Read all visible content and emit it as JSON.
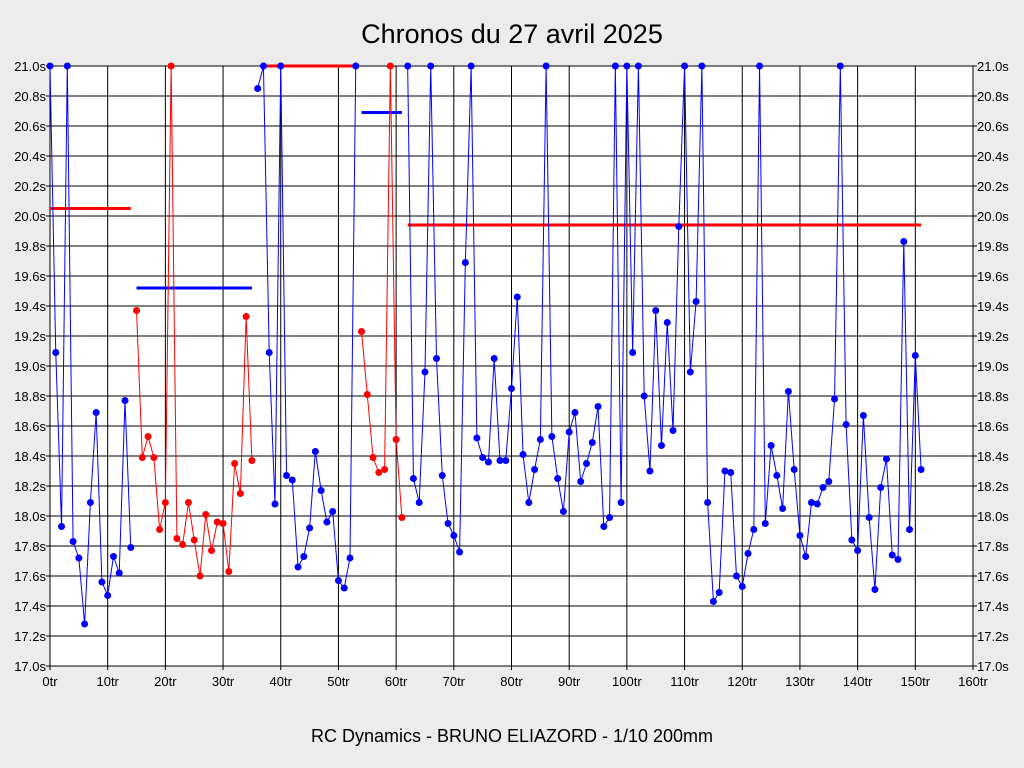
{
  "chart_data": {
    "type": "line",
    "title": "Chronos du 27 avril 2025",
    "footer": "RC Dynamics - BRUNO ELIAZORD - 1/10 200mm",
    "xlabel": "",
    "ylabel": "",
    "xlim": [
      0,
      160
    ],
    "ylim": [
      17.0,
      21.0
    ],
    "x_ticks": [
      "0tr",
      "10tr",
      "20tr",
      "30tr",
      "40tr",
      "50tr",
      "60tr",
      "70tr",
      "80tr",
      "90tr",
      "100tr",
      "110tr",
      "120tr",
      "130tr",
      "140tr",
      "150tr",
      "160tr"
    ],
    "y_ticks": [
      "17.0s",
      "17.2s",
      "17.4s",
      "17.6s",
      "17.8s",
      "18.0s",
      "18.2s",
      "18.4s",
      "18.6s",
      "18.8s",
      "19.0s",
      "19.2s",
      "19.4s",
      "19.6s",
      "19.8s",
      "20.0s",
      "20.2s",
      "20.4s",
      "20.6s",
      "20.8s",
      "21.0s"
    ],
    "grid": true,
    "series": [
      {
        "name": "run1",
        "color": "#0000ff",
        "start": 0,
        "values": [
          21.0,
          19.09,
          17.93,
          21.0,
          17.83,
          17.72,
          17.28,
          18.09,
          18.69,
          17.56,
          17.47,
          17.73,
          17.62,
          18.77,
          17.79
        ]
      },
      {
        "name": "run2",
        "color": "#ff0000",
        "start": 15,
        "values": [
          19.37,
          18.39,
          18.53,
          18.39,
          17.91,
          18.09,
          21.0,
          17.85,
          17.81,
          18.09,
          17.84,
          17.6,
          18.01,
          17.77,
          17.96,
          17.95,
          17.63,
          18.35,
          18.15,
          19.33,
          18.37
        ]
      },
      {
        "name": "run3",
        "color": "#0000ff",
        "start": 36,
        "values": [
          20.85,
          21.0,
          19.09,
          18.08,
          21.0,
          18.27,
          18.24,
          17.66,
          17.73,
          17.92,
          18.43,
          18.17,
          17.96,
          18.03,
          17.57,
          17.52,
          17.72,
          21.0
        ]
      },
      {
        "name": "run4",
        "color": "#ff0000",
        "start": 54,
        "values": [
          19.23,
          18.81,
          18.39,
          18.29,
          18.31,
          21.0,
          18.51,
          17.99
        ]
      },
      {
        "name": "run5",
        "color": "#0000ff",
        "start": 62,
        "values": [
          21.0,
          18.25,
          18.09,
          18.96,
          21.0,
          19.05,
          18.27,
          17.95,
          17.87,
          17.76,
          19.69,
          21.0,
          18.52,
          18.39,
          18.36,
          19.05,
          18.37,
          18.37,
          18.85,
          19.46,
          18.41,
          18.09,
          18.31,
          18.51,
          21.0,
          18.53,
          18.25,
          18.03,
          18.56,
          18.69,
          18.23,
          18.35,
          18.49,
          18.73,
          17.93,
          17.99,
          21.0,
          18.09,
          21.0,
          19.09,
          21.0,
          18.8,
          18.3,
          19.37,
          18.47,
          19.29,
          18.57,
          19.93,
          21.0,
          18.96,
          19.43,
          21.0,
          18.09,
          17.43,
          17.49,
          18.3,
          18.29,
          17.6,
          17.53,
          17.75,
          17.91,
          21.0,
          17.95,
          18.47,
          18.27,
          18.05,
          18.83,
          18.31,
          17.87,
          17.73,
          18.09,
          18.08,
          18.19,
          18.23,
          18.78,
          21.0,
          18.61,
          17.84,
          17.77,
          18.67,
          17.99,
          17.51,
          18.19,
          18.38,
          17.74,
          17.71,
          19.83,
          17.91,
          19.07,
          18.31
        ]
      }
    ],
    "averages": [
      {
        "color": "#ff0000",
        "from": 0,
        "to": 14,
        "value": 20.05
      },
      {
        "color": "#0000ff",
        "from": 15,
        "to": 35,
        "value": 19.52
      },
      {
        "color": "#ff0000",
        "from": 37,
        "to": 53,
        "value": 21.0
      },
      {
        "color": "#0000ff",
        "from": 54,
        "to": 61,
        "value": 20.69
      },
      {
        "color": "#ff0000",
        "from": 62,
        "to": 151,
        "value": 19.94
      }
    ]
  }
}
